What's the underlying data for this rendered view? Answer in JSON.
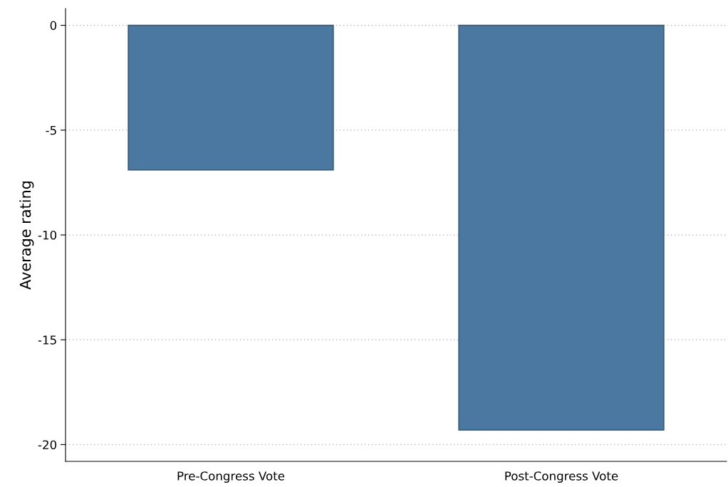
{
  "chart_data": {
    "type": "bar",
    "ylabel": "Average rating",
    "categories": [
      "Pre-Congress Vote",
      "Post-Congress Vote"
    ],
    "values": [
      -6.9,
      -19.3
    ],
    "color": "#4a78a0",
    "ylim": [
      -20.8,
      0.8
    ],
    "yticks": [
      0,
      -5,
      -10,
      -15,
      -20
    ],
    "grid": "y"
  }
}
